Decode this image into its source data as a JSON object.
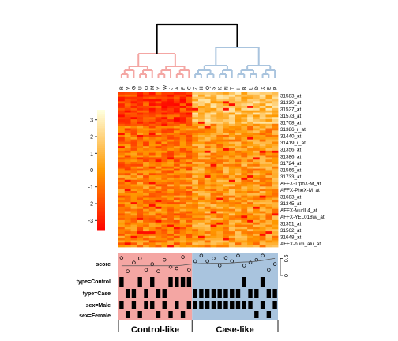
{
  "chart_data": {
    "type": "heatmap",
    "columns": [
      "R",
      "V",
      "G",
      "U",
      "O",
      "M",
      "Y",
      "W",
      "J",
      "A",
      "F",
      "C",
      "Z",
      "H",
      "Q",
      "S",
      "K",
      "N",
      "T",
      "I",
      "B",
      "L",
      "D",
      "X",
      "E",
      "P"
    ],
    "rows": [
      "31583_at",
      "31330_at",
      "31527_at",
      "31573_at",
      "31708_at",
      "31386_r_at",
      "31440_at",
      "31419_r_at",
      "31356_at",
      "31386_at",
      "31724_at",
      "31566_at",
      "31733_at",
      "AFFX-TrpnX-M_at",
      "AFFX-PheX-M_at",
      "31683_at",
      "31345_at",
      "AFFX-MurIL4_at",
      "AFFX-YEL018w/_at",
      "31351_at",
      "31562_at",
      "31648_at",
      "AFFX-hum_alu_at"
    ],
    "color_key": {
      "ticks": [
        3,
        2,
        1,
        0,
        -1,
        -2,
        -3
      ],
      "range": [
        -3.6,
        3.6
      ],
      "low_color": "#ff0000",
      "mid_color": "#ff9900",
      "high_color": "#ffffdd"
    },
    "clusters": [
      {
        "label": "Control-like",
        "n_columns": 12,
        "color": "#f4a6a3"
      },
      {
        "label": "Case-like",
        "n_columns": 14,
        "color": "#a9c4de"
      }
    ],
    "annotation_rows": [
      "score",
      "type=Control",
      "type=Case",
      "sex=Male",
      "sex=Female"
    ],
    "score": {
      "ticks": [
        "0",
        "0.6"
      ],
      "range": [
        0,
        0.75
      ],
      "points": [
        0.62,
        0.15,
        0.45,
        0.6,
        0.2,
        0.4,
        0.15,
        0.55,
        0.3,
        0.25,
        0.65,
        0.2,
        0.5,
        0.7,
        0.5,
        0.6,
        0.35,
        0.62,
        0.5,
        0.7,
        0.35,
        0.45,
        0.55,
        0.7,
        0.2,
        0.4
      ],
      "smooth": [
        0.34,
        0.34,
        0.34,
        0.34,
        0.34,
        0.34,
        0.34,
        0.34,
        0.34,
        0.34,
        0.36,
        0.39,
        0.41,
        0.42,
        0.42,
        0.43,
        0.43,
        0.43,
        0.44,
        0.46,
        0.47,
        0.48,
        0.5,
        0.53,
        0.57,
        0.6
      ]
    },
    "indicators": {
      "type=Control": [
        1,
        0,
        0,
        1,
        0,
        1,
        0,
        0,
        1,
        1,
        1,
        1,
        0,
        0,
        0,
        0,
        0,
        0,
        0,
        0,
        1,
        0,
        0,
        1,
        0,
        0
      ],
      "type=Case": [
        0,
        1,
        1,
        0,
        1,
        0,
        1,
        1,
        0,
        0,
        0,
        0,
        1,
        1,
        1,
        1,
        1,
        1,
        1,
        1,
        0,
        1,
        1,
        0,
        1,
        1
      ],
      "sex=Male": [
        1,
        0,
        1,
        0,
        1,
        1,
        0,
        1,
        0,
        1,
        0,
        1,
        1,
        1,
        1,
        1,
        1,
        1,
        1,
        1,
        1,
        1,
        0,
        1,
        0,
        1
      ],
      "sex=Female": [
        0,
        1,
        0,
        1,
        0,
        0,
        1,
        0,
        1,
        0,
        1,
        0,
        0,
        0,
        0,
        0,
        0,
        0,
        0,
        0,
        0,
        0,
        1,
        0,
        1,
        0
      ]
    }
  }
}
